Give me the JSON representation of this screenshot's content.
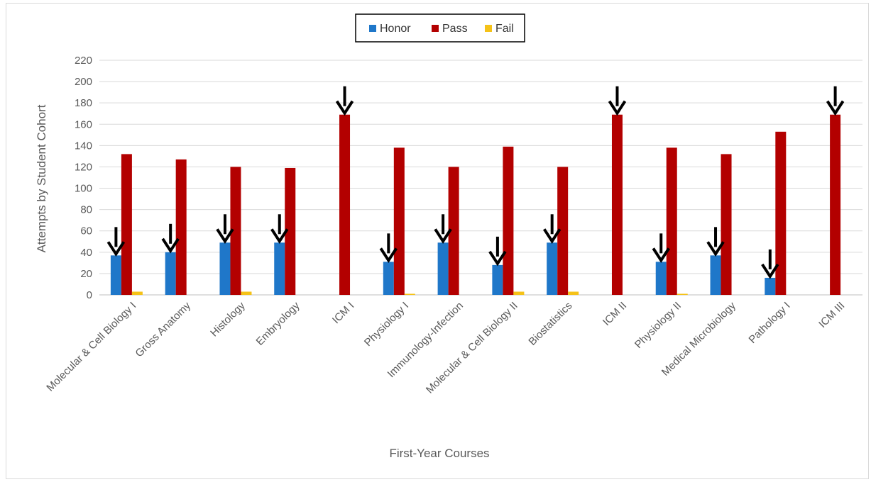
{
  "chart_data": {
    "type": "bar",
    "title": "",
    "xlabel": "First-Year Courses",
    "ylabel": "Attempts  by Student Cohort",
    "ylim": [
      0,
      220
    ],
    "yticks": [
      0,
      20,
      40,
      60,
      80,
      100,
      120,
      140,
      160,
      180,
      200,
      220
    ],
    "grid": true,
    "legend_position": "top-center",
    "categories": [
      "Molecular & Cell Biology I",
      "Gross Anatomy",
      "Histology",
      "Embryology",
      "ICM I",
      "Physiology I",
      "Immunology-Infection",
      "Molecular & Cell Biology II",
      "Biostatistics",
      "ICM  II",
      "Physiology II",
      "Medical Microbiology",
      "Pathology I",
      "ICM III"
    ],
    "series": [
      {
        "name": "Honor",
        "color": "#1f77c9",
        "values": [
          37,
          40,
          49,
          49,
          0,
          31,
          49,
          28,
          49,
          0,
          31,
          37,
          16,
          0
        ]
      },
      {
        "name": "Pass",
        "color": "#b30000",
        "values": [
          132,
          127,
          120,
          119,
          169,
          138,
          120,
          139,
          120,
          169,
          138,
          132,
          153,
          169
        ]
      },
      {
        "name": "Fail",
        "color": "#f5c218",
        "values": [
          3,
          0,
          3,
          0,
          0,
          1,
          0,
          3,
          3,
          0,
          1,
          0,
          0,
          0
        ]
      }
    ],
    "arrows": [
      {
        "category": "Molecular & Cell Biology I",
        "points_to": "Honor"
      },
      {
        "category": "Gross Anatomy",
        "points_to": "Honor"
      },
      {
        "category": "Histology",
        "points_to": "Honor"
      },
      {
        "category": "Embryology",
        "points_to": "Honor"
      },
      {
        "category": "ICM I",
        "points_to": "Pass"
      },
      {
        "category": "Physiology I",
        "points_to": "Honor"
      },
      {
        "category": "Immunology-Infection",
        "points_to": "Honor"
      },
      {
        "category": "Molecular & Cell Biology II",
        "points_to": "Honor"
      },
      {
        "category": "Biostatistics",
        "points_to": "Honor"
      },
      {
        "category": "ICM  II",
        "points_to": "Pass"
      },
      {
        "category": "Physiology II",
        "points_to": "Honor"
      },
      {
        "category": "Medical Microbiology",
        "points_to": "Honor"
      },
      {
        "category": "Pathology I",
        "points_to": "Honor"
      },
      {
        "category": "ICM III",
        "points_to": "Pass"
      }
    ]
  }
}
